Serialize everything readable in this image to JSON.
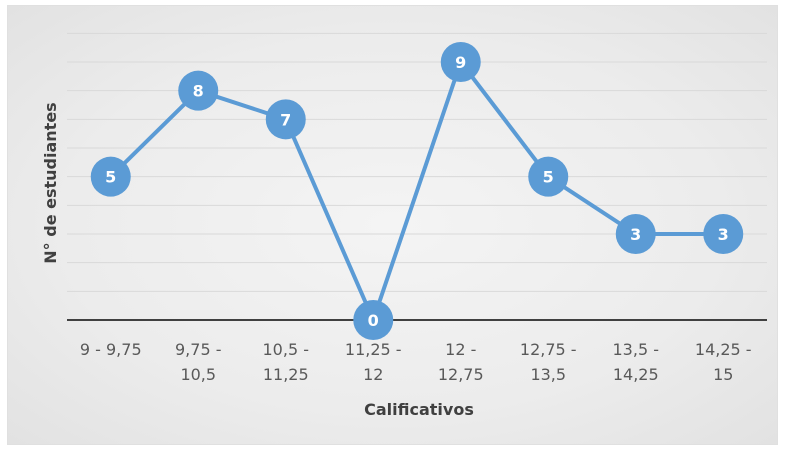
{
  "chart_data": {
    "type": "line",
    "categories": [
      [
        "9 - 9,75"
      ],
      [
        "9,75 -",
        "10,5"
      ],
      [
        "10,5 -",
        "11,25"
      ],
      [
        "11,25 -",
        "12"
      ],
      [
        "12 -",
        "12,75"
      ],
      [
        "12,75 -",
        "13,5"
      ],
      [
        "13,5 -",
        "14,25"
      ],
      [
        "14,25 -",
        "15"
      ]
    ],
    "values": [
      5,
      8,
      7,
      0,
      9,
      5,
      3,
      3
    ],
    "data_labels": [
      "5",
      "8",
      "7",
      "0",
      "9",
      "5",
      "3",
      "3"
    ],
    "xlabel": "Calificativos",
    "ylabel": "N° de estudiantes",
    "ylim": [
      0,
      9
    ],
    "grid": true,
    "legend": "none",
    "colors": {
      "series": "#5b9bd5",
      "grid": "#d9d9d9",
      "axis": "#404040",
      "label": "#ffffff"
    }
  }
}
